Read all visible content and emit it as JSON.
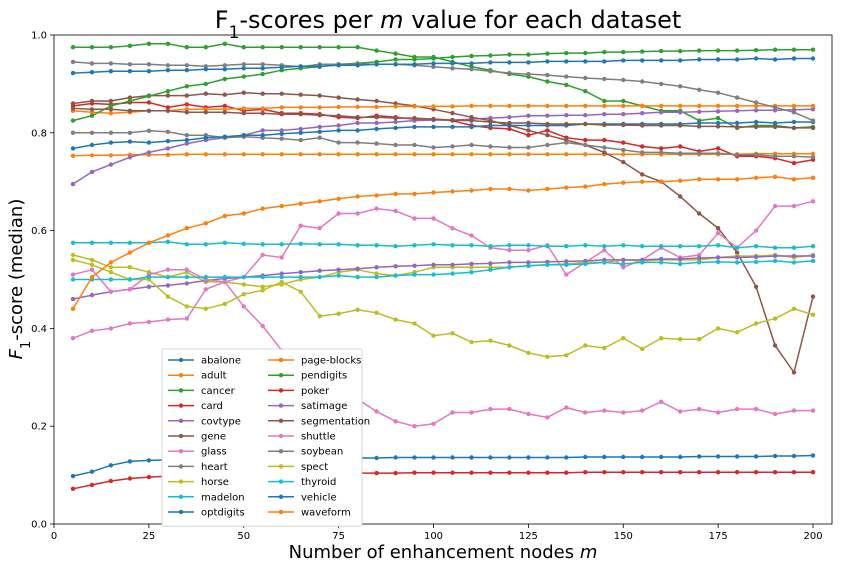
{
  "chart_data": {
    "type": "line",
    "title_parts": [
      "F",
      "1",
      "-scores per ",
      "m",
      " value for each dataset"
    ],
    "xlabel_parts": [
      "Number of enhancement nodes ",
      "m"
    ],
    "ylabel_parts": [
      "F",
      "1",
      "-score (median)"
    ],
    "xlim": [
      0,
      205
    ],
    "ylim": [
      0,
      1.0
    ],
    "xticks": [
      0,
      25,
      50,
      75,
      100,
      125,
      150,
      175,
      200
    ],
    "yticks": [
      0.0,
      0.2,
      0.4,
      0.6,
      0.8,
      1.0
    ],
    "ytick_labels": [
      "0.0",
      "0.2",
      "0.4",
      "0.6",
      "0.8",
      "1.0"
    ],
    "grid": false,
    "legend_position": "lower-center",
    "x_start": 5,
    "x_step": 5,
    "series": [
      {
        "name": "abalone",
        "color": "#1f77b4",
        "values": [
          0.098,
          0.107,
          0.12,
          0.128,
          0.13,
          0.131,
          0.132,
          0.132,
          0.133,
          0.133,
          0.134,
          0.134,
          0.134,
          0.135,
          0.135,
          0.135,
          0.135,
          0.136,
          0.136,
          0.136,
          0.136,
          0.136,
          0.136,
          0.136,
          0.136,
          0.136,
          0.136,
          0.137,
          0.137,
          0.137,
          0.137,
          0.137,
          0.137,
          0.138,
          0.138,
          0.138,
          0.138,
          0.139,
          0.139,
          0.14
        ]
      },
      {
        "name": "adult",
        "color": "#ff7f0e",
        "values": [
          0.753,
          0.754,
          0.754,
          0.755,
          0.755,
          0.755,
          0.756,
          0.756,
          0.756,
          0.756,
          0.756,
          0.756,
          0.756,
          0.756,
          0.756,
          0.756,
          0.756,
          0.756,
          0.756,
          0.756,
          0.756,
          0.756,
          0.756,
          0.756,
          0.756,
          0.756,
          0.756,
          0.756,
          0.756,
          0.756,
          0.756,
          0.756,
          0.756,
          0.756,
          0.756,
          0.756,
          0.757,
          0.757,
          0.757,
          0.757
        ]
      },
      {
        "name": "cancer",
        "color": "#2ca02c",
        "values": [
          0.975,
          0.975,
          0.975,
          0.978,
          0.982,
          0.982,
          0.975,
          0.975,
          0.982,
          0.975,
          0.975,
          0.975,
          0.975,
          0.975,
          0.975,
          0.975,
          0.968,
          0.962,
          0.955,
          0.955,
          0.945,
          0.935,
          0.928,
          0.92,
          0.915,
          0.905,
          0.898,
          0.885,
          0.865,
          0.865,
          0.855,
          0.845,
          0.845,
          0.825,
          0.83,
          0.81,
          0.815,
          0.815,
          0.81,
          0.812
        ]
      },
      {
        "name": "card",
        "color": "#d62728",
        "values": [
          0.855,
          0.86,
          0.858,
          0.862,
          0.862,
          0.852,
          0.858,
          0.852,
          0.855,
          0.845,
          0.848,
          0.84,
          0.84,
          0.838,
          0.832,
          0.83,
          0.835,
          0.832,
          0.828,
          0.828,
          0.825,
          0.815,
          0.81,
          0.808,
          0.795,
          0.805,
          0.79,
          0.785,
          0.785,
          0.78,
          0.772,
          0.768,
          0.772,
          0.762,
          0.768,
          0.752,
          0.752,
          0.748,
          0.738,
          0.745
        ]
      },
      {
        "name": "covtype",
        "color": "#9467bd",
        "values": [
          0.695,
          0.72,
          0.735,
          0.75,
          0.76,
          0.768,
          0.778,
          0.785,
          0.79,
          0.795,
          0.805,
          0.805,
          0.808,
          0.812,
          0.815,
          0.82,
          0.82,
          0.822,
          0.825,
          0.826,
          0.826,
          0.828,
          0.83,
          0.832,
          0.835,
          0.835,
          0.836,
          0.836,
          0.838,
          0.838,
          0.84,
          0.842,
          0.842,
          0.843,
          0.844,
          0.845,
          0.846,
          0.846,
          0.847,
          0.848
        ]
      },
      {
        "name": "gene",
        "color": "#8c564b",
        "values": [
          0.86,
          0.865,
          0.865,
          0.872,
          0.876,
          0.876,
          0.876,
          0.88,
          0.878,
          0.882,
          0.88,
          0.88,
          0.878,
          0.876,
          0.872,
          0.868,
          0.865,
          0.86,
          0.855,
          0.848,
          0.84,
          0.832,
          0.825,
          0.815,
          0.805,
          0.795,
          0.785,
          0.775,
          0.76,
          0.74,
          0.715,
          0.7,
          0.67,
          0.635,
          0.605,
          0.555,
          0.485,
          0.365,
          0.31,
          0.465
        ]
      },
      {
        "name": "glass",
        "color": "#e377c2",
        "values": [
          0.38,
          0.395,
          0.4,
          0.41,
          0.413,
          0.418,
          0.42,
          0.48,
          0.495,
          0.505,
          0.55,
          0.545,
          0.61,
          0.605,
          0.635,
          0.635,
          0.645,
          0.64,
          0.625,
          0.625,
          0.605,
          0.59,
          0.565,
          0.56,
          0.56,
          0.57,
          0.51,
          0.535,
          0.56,
          0.525,
          0.54,
          0.565,
          0.545,
          0.55,
          0.595,
          0.565,
          0.6,
          0.65,
          0.65,
          0.66
        ]
      },
      {
        "name": "heart",
        "color": "#7f7f7f",
        "values": [
          0.8,
          0.8,
          0.8,
          0.8,
          0.804,
          0.802,
          0.795,
          0.795,
          0.79,
          0.792,
          0.79,
          0.788,
          0.785,
          0.79,
          0.78,
          0.78,
          0.778,
          0.775,
          0.775,
          0.77,
          0.772,
          0.775,
          0.772,
          0.77,
          0.77,
          0.775,
          0.78,
          0.775,
          0.77,
          0.765,
          0.76,
          0.76,
          0.758,
          0.758,
          0.758,
          0.755,
          0.755,
          0.752,
          0.752,
          0.75
        ]
      },
      {
        "name": "horse",
        "color": "#bcbd22",
        "values": [
          0.55,
          0.54,
          0.525,
          0.525,
          0.515,
          0.505,
          0.515,
          0.495,
          0.495,
          0.49,
          0.485,
          0.49,
          0.5,
          0.505,
          0.515,
          0.52,
          0.512,
          0.508,
          0.515,
          0.525,
          0.525,
          0.525,
          0.525,
          0.525,
          0.528,
          0.53,
          0.532,
          0.535,
          0.535,
          0.54,
          0.538,
          0.54,
          0.54,
          0.54,
          0.545,
          0.548,
          0.548,
          0.55,
          0.545,
          0.55
        ]
      },
      {
        "name": "madelon",
        "color": "#17becf",
        "values": [
          0.575,
          0.575,
          0.575,
          0.575,
          0.575,
          0.577,
          0.572,
          0.572,
          0.575,
          0.573,
          0.572,
          0.572,
          0.573,
          0.572,
          0.572,
          0.57,
          0.57,
          0.568,
          0.57,
          0.572,
          0.57,
          0.57,
          0.568,
          0.57,
          0.57,
          0.568,
          0.568,
          0.57,
          0.568,
          0.57,
          0.568,
          0.568,
          0.568,
          0.568,
          0.57,
          0.565,
          0.568,
          0.565,
          0.565,
          0.568
        ]
      },
      {
        "name": "optdigits",
        "color": "#1f77b4",
        "values": [
          0.768,
          0.775,
          0.78,
          0.782,
          0.78,
          0.783,
          0.785,
          0.79,
          0.792,
          0.795,
          0.795,
          0.798,
          0.8,
          0.802,
          0.805,
          0.805,
          0.808,
          0.81,
          0.812,
          0.812,
          0.812,
          0.812,
          0.815,
          0.815,
          0.815,
          0.815,
          0.815,
          0.818,
          0.818,
          0.818,
          0.818,
          0.818,
          0.818,
          0.82,
          0.82,
          0.82,
          0.822,
          0.82,
          0.822,
          0.822
        ]
      },
      {
        "name": "page-blocks",
        "color": "#ff7f0e",
        "values": [
          0.845,
          0.842,
          0.84,
          0.842,
          0.845,
          0.845,
          0.848,
          0.848,
          0.848,
          0.85,
          0.85,
          0.852,
          0.852,
          0.852,
          0.853,
          0.853,
          0.853,
          0.854,
          0.854,
          0.854,
          0.854,
          0.855,
          0.855,
          0.855,
          0.855,
          0.855,
          0.855,
          0.855,
          0.855,
          0.855,
          0.855,
          0.855,
          0.855,
          0.855,
          0.855,
          0.855,
          0.855,
          0.855,
          0.855,
          0.855
        ]
      },
      {
        "name": "pendigits",
        "color": "#2ca02c",
        "values": [
          0.825,
          0.835,
          0.855,
          0.865,
          0.875,
          0.885,
          0.895,
          0.9,
          0.91,
          0.915,
          0.92,
          0.928,
          0.932,
          0.935,
          0.94,
          0.942,
          0.945,
          0.95,
          0.95,
          0.952,
          0.955,
          0.957,
          0.958,
          0.96,
          0.96,
          0.962,
          0.963,
          0.963,
          0.965,
          0.965,
          0.966,
          0.967,
          0.967,
          0.968,
          0.968,
          0.968,
          0.969,
          0.97,
          0.97,
          0.97
        ]
      },
      {
        "name": "poker",
        "color": "#d62728",
        "values": [
          0.072,
          0.08,
          0.088,
          0.093,
          0.096,
          0.098,
          0.099,
          0.1,
          0.101,
          0.102,
          0.102,
          0.103,
          0.103,
          0.103,
          0.104,
          0.104,
          0.104,
          0.104,
          0.105,
          0.105,
          0.105,
          0.105,
          0.105,
          0.105,
          0.105,
          0.105,
          0.105,
          0.106,
          0.106,
          0.106,
          0.106,
          0.106,
          0.106,
          0.106,
          0.106,
          0.106,
          0.106,
          0.106,
          0.106,
          0.106
        ]
      },
      {
        "name": "satimage",
        "color": "#9467bd",
        "values": [
          0.46,
          0.468,
          0.475,
          0.48,
          0.485,
          0.488,
          0.492,
          0.498,
          0.502,
          0.505,
          0.508,
          0.512,
          0.515,
          0.518,
          0.52,
          0.522,
          0.525,
          0.527,
          0.528,
          0.53,
          0.53,
          0.532,
          0.533,
          0.535,
          0.535,
          0.536,
          0.537,
          0.538,
          0.54,
          0.54,
          0.54,
          0.542,
          0.542,
          0.544,
          0.545,
          0.545,
          0.546,
          0.548,
          0.548,
          0.548
        ]
      },
      {
        "name": "segmentation",
        "color": "#8c564b",
        "values": [
          0.85,
          0.848,
          0.848,
          0.845,
          0.845,
          0.845,
          0.842,
          0.842,
          0.842,
          0.84,
          0.84,
          0.838,
          0.838,
          0.836,
          0.835,
          0.832,
          0.832,
          0.83,
          0.83,
          0.828,
          0.826,
          0.825,
          0.822,
          0.82,
          0.82,
          0.818,
          0.818,
          0.818,
          0.816,
          0.816,
          0.815,
          0.815,
          0.815,
          0.813,
          0.813,
          0.812,
          0.812,
          0.812,
          0.81,
          0.81
        ]
      },
      {
        "name": "shuttle",
        "color": "#e377c2",
        "values": [
          0.51,
          0.52,
          0.475,
          0.48,
          0.51,
          0.52,
          0.52,
          0.5,
          0.495,
          0.445,
          0.405,
          0.355,
          0.33,
          0.29,
          0.255,
          0.255,
          0.23,
          0.21,
          0.2,
          0.205,
          0.228,
          0.228,
          0.235,
          0.235,
          0.225,
          0.218,
          0.238,
          0.228,
          0.232,
          0.228,
          0.232,
          0.25,
          0.23,
          0.235,
          0.228,
          0.235,
          0.235,
          0.225,
          0.232,
          0.232
        ]
      },
      {
        "name": "soybean",
        "color": "#7f7f7f",
        "values": [
          0.945,
          0.942,
          0.942,
          0.94,
          0.94,
          0.938,
          0.938,
          0.936,
          0.938,
          0.94,
          0.94,
          0.938,
          0.935,
          0.94,
          0.94,
          0.94,
          0.94,
          0.94,
          0.938,
          0.935,
          0.932,
          0.93,
          0.926,
          0.922,
          0.92,
          0.918,
          0.915,
          0.912,
          0.91,
          0.908,
          0.905,
          0.9,
          0.895,
          0.888,
          0.882,
          0.872,
          0.862,
          0.852,
          0.842,
          0.825
        ]
      },
      {
        "name": "spect",
        "color": "#bcbd22",
        "values": [
          0.54,
          0.53,
          0.515,
          0.5,
          0.5,
          0.465,
          0.445,
          0.44,
          0.45,
          0.47,
          0.478,
          0.495,
          0.475,
          0.425,
          0.43,
          0.438,
          0.432,
          0.418,
          0.41,
          0.385,
          0.39,
          0.372,
          0.375,
          0.365,
          0.35,
          0.342,
          0.345,
          0.365,
          0.36,
          0.38,
          0.358,
          0.38,
          0.378,
          0.378,
          0.4,
          0.392,
          0.41,
          0.42,
          0.44,
          0.428
        ]
      },
      {
        "name": "thyroid",
        "color": "#17becf",
        "values": [
          0.5,
          0.5,
          0.5,
          0.5,
          0.505,
          0.505,
          0.505,
          0.505,
          0.505,
          0.505,
          0.505,
          0.505,
          0.505,
          0.505,
          0.508,
          0.505,
          0.505,
          0.508,
          0.51,
          0.51,
          0.512,
          0.515,
          0.52,
          0.525,
          0.528,
          0.53,
          0.53,
          0.532,
          0.535,
          0.532,
          0.535,
          0.535,
          0.532,
          0.535,
          0.536,
          0.535,
          0.536,
          0.538,
          0.535,
          0.538
        ]
      },
      {
        "name": "vehicle",
        "color": "#1f77b4",
        "values": [
          0.922,
          0.924,
          0.926,
          0.926,
          0.926,
          0.928,
          0.928,
          0.93,
          0.93,
          0.932,
          0.932,
          0.934,
          0.936,
          0.936,
          0.938,
          0.938,
          0.94,
          0.94,
          0.94,
          0.942,
          0.942,
          0.942,
          0.944,
          0.944,
          0.944,
          0.946,
          0.946,
          0.946,
          0.946,
          0.948,
          0.948,
          0.948,
          0.948,
          0.95,
          0.95,
          0.95,
          0.952,
          0.95,
          0.952,
          0.952
        ]
      },
      {
        "name": "waveform",
        "color": "#ff7f0e",
        "values": [
          0.44,
          0.505,
          0.535,
          0.555,
          0.575,
          0.59,
          0.605,
          0.615,
          0.63,
          0.635,
          0.645,
          0.65,
          0.655,
          0.66,
          0.665,
          0.67,
          0.672,
          0.675,
          0.675,
          0.678,
          0.68,
          0.682,
          0.685,
          0.685,
          0.682,
          0.685,
          0.688,
          0.69,
          0.695,
          0.698,
          0.7,
          0.7,
          0.702,
          0.705,
          0.705,
          0.705,
          0.708,
          0.71,
          0.705,
          0.708
        ]
      }
    ]
  }
}
